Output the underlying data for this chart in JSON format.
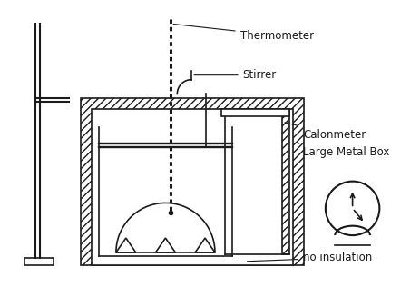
{
  "bg_color": "#ffffff",
  "line_color": "#1a1a1a",
  "labels": {
    "thermometer": "Thermometer",
    "stirrer": "Stirrer",
    "calorimeter": "Calonmeter",
    "metal_box": "Large Metal Box",
    "no_insulation": "no insulation"
  },
  "label_fontsize": 8.5
}
